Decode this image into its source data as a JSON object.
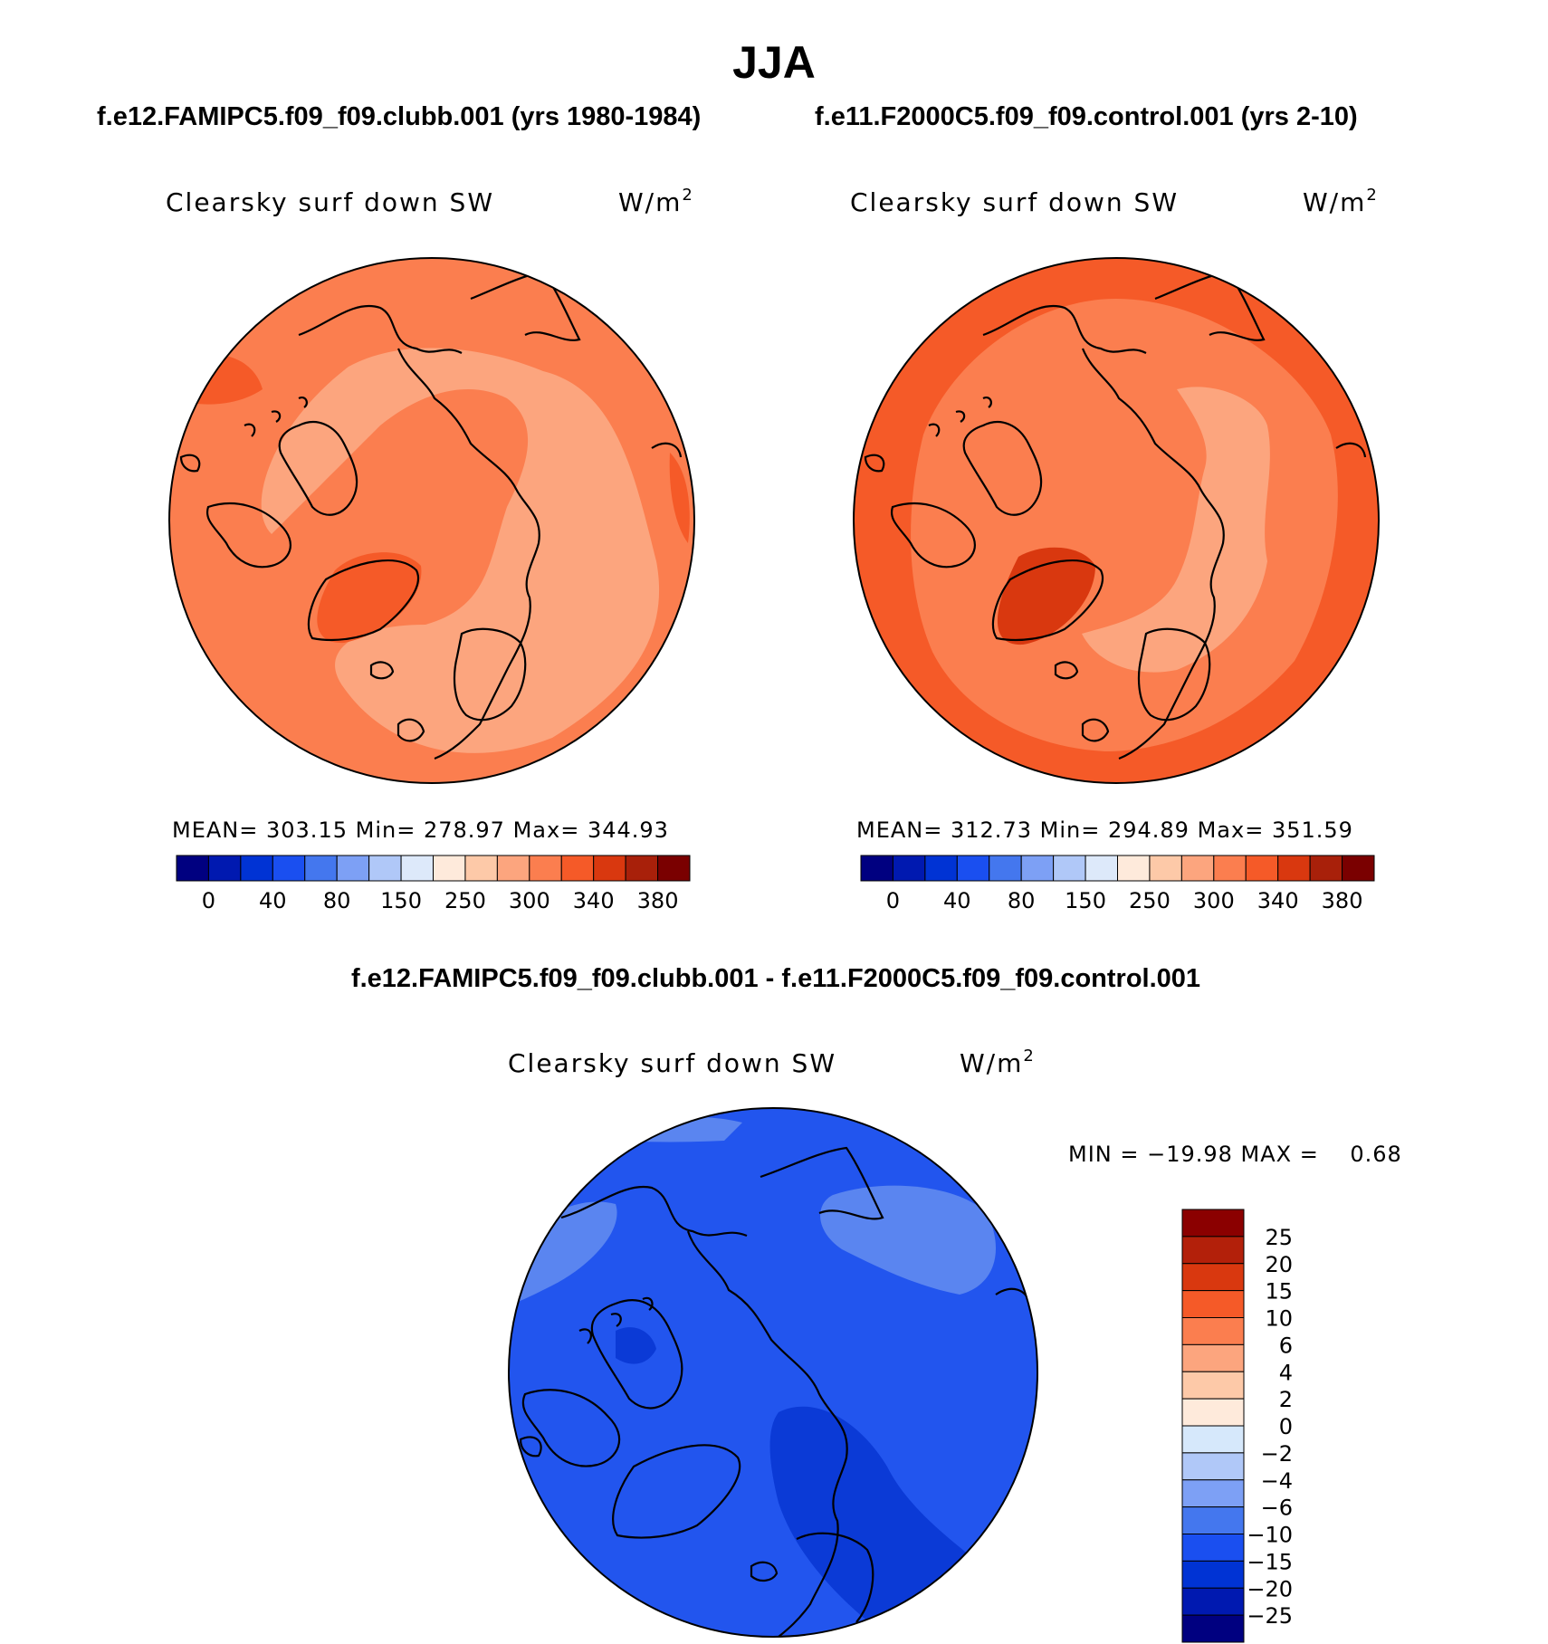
{
  "season": "JJA",
  "case_a_title": "f.e12.FAMIPC5.f09_f09.clubb.001 (yrs 1980-1984)",
  "case_b_title": "f.e11.F2000C5.f09_f09.control.001 (yrs 2-10)",
  "diff_title": "f.e12.FAMIPC5.f09_f09.clubb.001 - f.e11.F2000C5.f09_f09.control.001",
  "chart_data": [
    {
      "type": "heatmap",
      "projection": "north-polar-stereographic",
      "variable": "Clearsky surf down SW",
      "units_base": "W/m",
      "units_exp": "2",
      "stats": {
        "mean_label": "MEAN=",
        "mean": "303.15",
        "min_label": "Min=",
        "min": "278.97",
        "max_label": "Max=",
        "max": "344.93"
      },
      "colorbar": {
        "levels": [
          "0",
          "40",
          "80",
          "150",
          "250",
          "300",
          "340",
          "380"
        ],
        "colors": [
          "#000080",
          "#0019b0",
          "#0033d4",
          "#1a4ff0",
          "#4477ee",
          "#7da0f5",
          "#b0c8f8",
          "#dde9fa",
          "#feeadb",
          "#fdc9a8",
          "#fca57e",
          "#fb7e4f",
          "#f55a28",
          "#d9380f",
          "#a8200a",
          "#7a0000"
        ]
      },
      "field_colors": {
        "background": "#fb7e4f",
        "low": "#fca57e",
        "high": "#f55a28"
      }
    },
    {
      "type": "heatmap",
      "projection": "north-polar-stereographic",
      "variable": "Clearsky surf down SW",
      "units_base": "W/m",
      "units_exp": "2",
      "stats": {
        "mean_label": "MEAN=",
        "mean": "312.73",
        "min_label": "Min=",
        "min": "294.89",
        "max_label": "Max=",
        "max": "351.59"
      },
      "colorbar": {
        "levels": [
          "0",
          "40",
          "80",
          "150",
          "250",
          "300",
          "340",
          "380"
        ],
        "colors": [
          "#000080",
          "#0019b0",
          "#0033d4",
          "#1a4ff0",
          "#4477ee",
          "#7da0f5",
          "#b0c8f8",
          "#dde9fa",
          "#feeadb",
          "#fdc9a8",
          "#fca57e",
          "#fb7e4f",
          "#f55a28",
          "#d9380f",
          "#a8200a",
          "#7a0000"
        ]
      },
      "field_colors": {
        "background": "#f55a28",
        "low": "#fca57e",
        "high": "#d9380f"
      }
    },
    {
      "type": "heatmap",
      "projection": "north-polar-stereographic",
      "variable": "Clearsky surf down SW",
      "units_base": "W/m",
      "units_exp": "2",
      "stats": {
        "text": "MIN = −19.98 MAX =    0.68"
      },
      "colorbar": {
        "orientation": "vertical",
        "levels": [
          "25",
          "20",
          "15",
          "10",
          "6",
          "4",
          "2",
          "0",
          "−2",
          "−4",
          "−6",
          "−10",
          "−15",
          "−20",
          "−25"
        ],
        "colors": [
          "#8b0000",
          "#b3200a",
          "#d9380f",
          "#f55a28",
          "#fb7e4f",
          "#fca57e",
          "#fdc9a8",
          "#feeadb",
          "#d6e8fb",
          "#b0c8f8",
          "#7da0f5",
          "#4477ee",
          "#1a4ff0",
          "#0033d4",
          "#0019b0",
          "#000080"
        ]
      },
      "field_colors": {
        "background": "#2255ee",
        "low": "#0b3ad6",
        "high": "#5a85f0"
      }
    }
  ]
}
